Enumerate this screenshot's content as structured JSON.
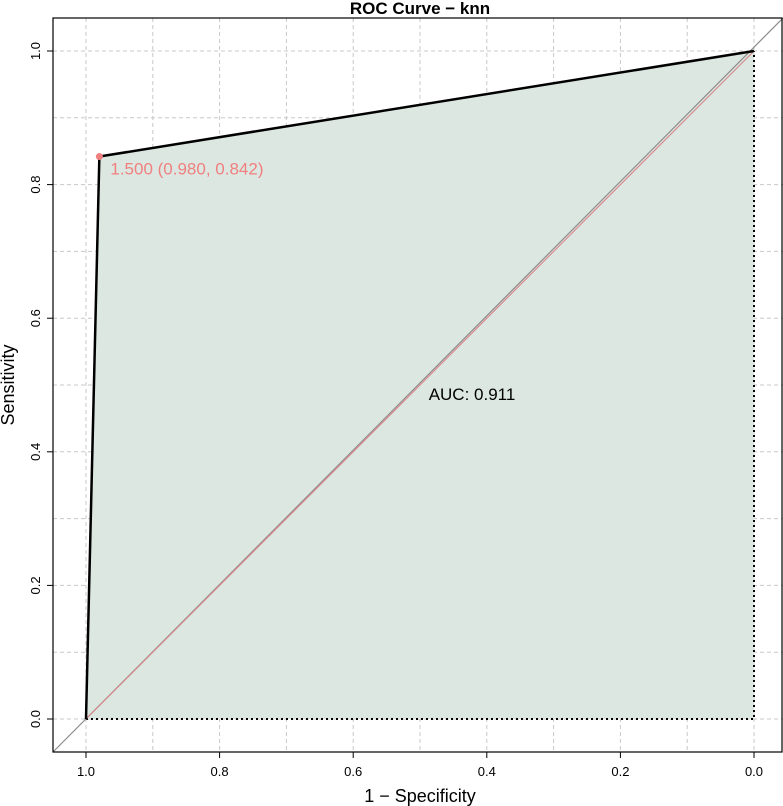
{
  "chart_data": {
    "type": "line",
    "title": "ROC Curve − knn",
    "xlabel": "1 − Specificity",
    "ylabel": "Sensitivity",
    "x_axis_reversed": true,
    "xlim": [
      1.0,
      0.0
    ],
    "ylim": [
      0.0,
      1.0
    ],
    "x_ticks": [
      "1.0",
      "0.8",
      "0.6",
      "0.4",
      "0.2",
      "0.0"
    ],
    "y_ticks": [
      "0.0",
      "0.2",
      "0.4",
      "0.6",
      "0.8",
      "1.0"
    ],
    "grid": true,
    "series": [
      {
        "x": [
          1.0,
          0.98,
          0.98,
          0.0
        ],
        "y": [
          0.0,
          0.842,
          0.842,
          1.0
        ]
      }
    ],
    "reference_line": {
      "x": [
        1.0,
        0.0
      ],
      "y": [
        0.0,
        1.0
      ]
    },
    "best_point": {
      "x": 0.98,
      "y": 0.842,
      "label": "1.500 (0.980, 0.842)"
    },
    "auc_label": "AUC: 0.911",
    "colors": {
      "curve": "#000000",
      "auc_fill": "#dce7e1",
      "reference_line": "#d98b8b",
      "diagonal": "#8c8c8c",
      "best_point": "#f08080",
      "grid": "#c8c8c8"
    }
  }
}
